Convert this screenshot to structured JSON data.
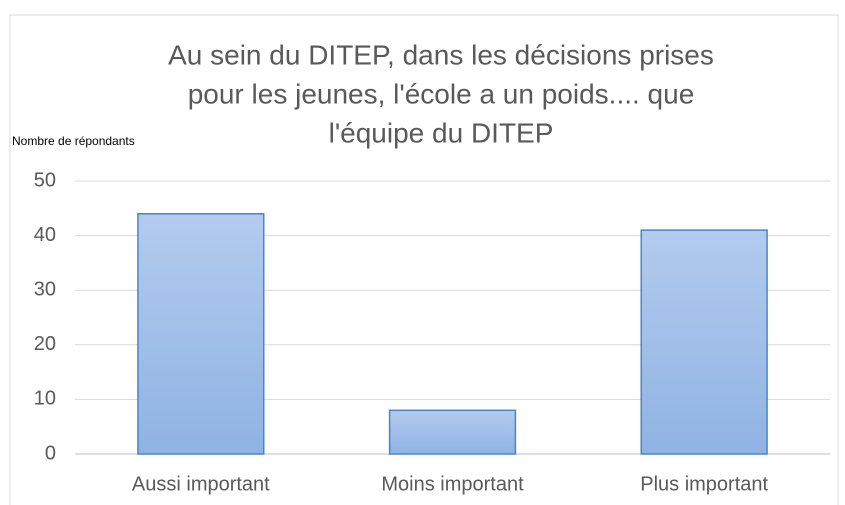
{
  "chart_data": {
    "type": "bar",
    "title": [
      "Au sein du DITEP, dans les décisions prises",
      "pour les jeunes, l'école a un poids.... que",
      "l'équipe du DITEP"
    ],
    "y_axis_label": "Nombre de  répondants",
    "categories": [
      "Aussi important",
      "Moins important",
      "Plus important"
    ],
    "values": [
      44,
      8,
      41
    ],
    "color": "#9dbde8",
    "ylim": [
      0,
      50
    ],
    "yticks": [
      0,
      10,
      20,
      30,
      40,
      50
    ],
    "grid": true
  }
}
